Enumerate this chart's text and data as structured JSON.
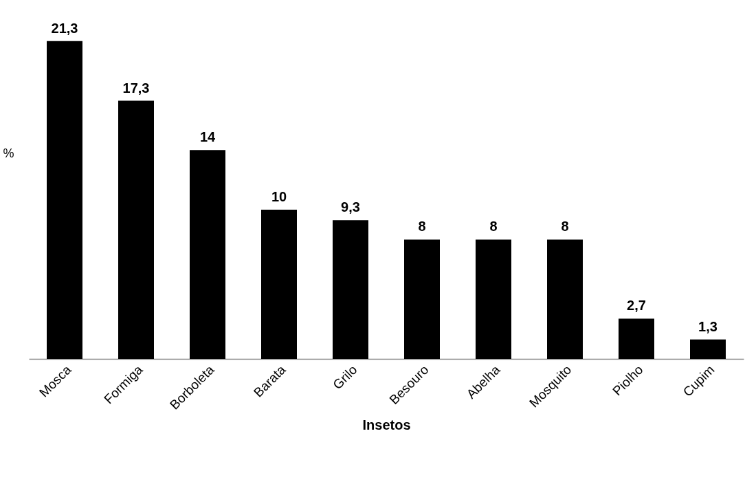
{
  "chart_data": {
    "type": "bar",
    "xlabel": "Insetos",
    "ylabel": "%",
    "categories": [
      "Mosca",
      "Formiga",
      "Borboleta",
      "Barata",
      "Grilo",
      "Besouro",
      "Abelha",
      "Mosquito",
      "Piolho",
      "Cupim"
    ],
    "values": [
      21.3,
      17.3,
      14,
      10,
      9.3,
      8,
      8,
      8,
      2.7,
      1.3
    ],
    "value_labels": [
      "21,3",
      "17,3",
      "14",
      "10",
      "9,3",
      "8",
      "8",
      "8",
      "2,7",
      "1,3"
    ],
    "color": "#000000",
    "grid": false
  }
}
